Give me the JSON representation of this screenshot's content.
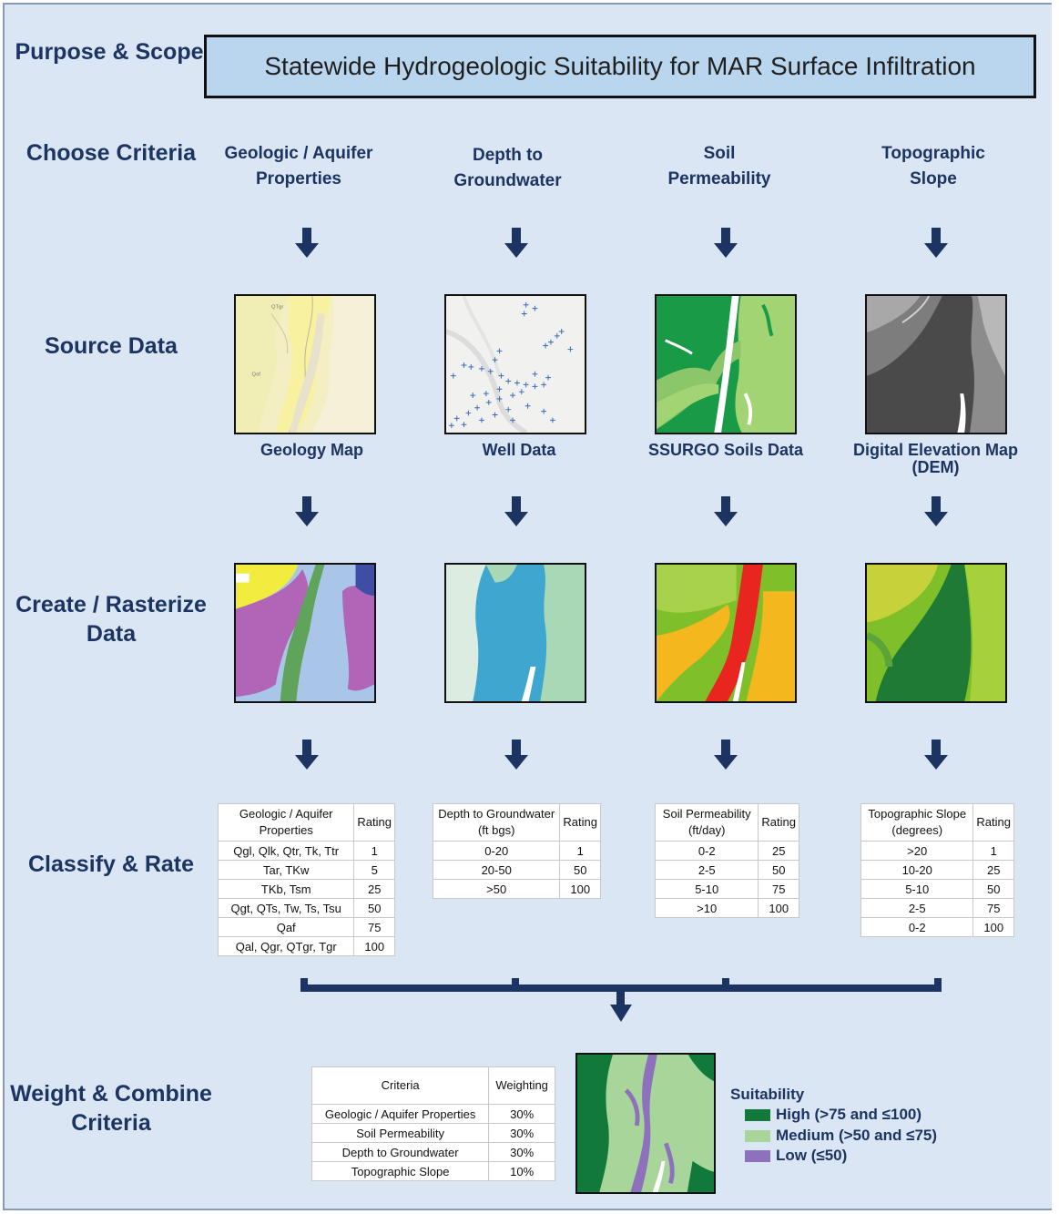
{
  "steps": {
    "purpose": "Purpose & Scope",
    "choose": "Choose Criteria",
    "source": "Source Data",
    "create": "Create / Rasterize Data",
    "classify": "Classify & Rate",
    "weight": "Weight & Combine Criteria"
  },
  "title": "Statewide Hydrogeologic Suitability for MAR Surface Infiltration",
  "criteria": [
    {
      "name": "Geologic / Aquifer Properties",
      "source": "Geology Map"
    },
    {
      "name": "Depth to Groundwater",
      "source": "Well Data"
    },
    {
      "name": "Soil Permeability",
      "source": "SSURGO Soils Data"
    },
    {
      "name": "Topographic Slope",
      "source": "Digital Elevation Map (DEM)"
    }
  ],
  "map_labels": {
    "geo_a": "QTgr",
    "geo_b": "Qaf"
  },
  "tables": {
    "geology": {
      "header": [
        "Geologic / Aquifer Properties",
        "Rating"
      ],
      "rows": [
        [
          "Qgl, Qlk, Qtr, Tk, Ttr",
          "1"
        ],
        [
          "Tar, TKw",
          "5"
        ],
        [
          "TKb, Tsm",
          "25"
        ],
        [
          "Qgt, QTs, Tw, Ts, Tsu",
          "50"
        ],
        [
          "Qaf",
          "75"
        ],
        [
          "Qal, Qgr, QTgr, Tgr",
          "100"
        ]
      ]
    },
    "depth": {
      "header": [
        "Depth to Groundwater (ft bgs)",
        "Rating"
      ],
      "rows": [
        [
          "0-20",
          "1"
        ],
        [
          "20-50",
          "50"
        ],
        [
          ">50",
          "100"
        ]
      ]
    },
    "soil": {
      "header": [
        "Soil Permeability (ft/day)",
        "Rating"
      ],
      "rows": [
        [
          "0-2",
          "25"
        ],
        [
          "2-5",
          "50"
        ],
        [
          "5-10",
          "75"
        ],
        [
          ">10",
          "100"
        ]
      ]
    },
    "slope": {
      "header": [
        "Topographic Slope (degrees)",
        "Rating"
      ],
      "rows": [
        [
          ">20",
          "1"
        ],
        [
          "10-20",
          "25"
        ],
        [
          "5-10",
          "50"
        ],
        [
          "2-5",
          "75"
        ],
        [
          "0-2",
          "100"
        ]
      ]
    },
    "weights": {
      "header": [
        "Criteria",
        "Weighting"
      ],
      "rows": [
        [
          "Geologic / Aquifer Properties",
          "30%"
        ],
        [
          "Soil Permeability",
          "30%"
        ],
        [
          "Depth to Groundwater",
          "30%"
        ],
        [
          "Topographic Slope",
          "10%"
        ]
      ]
    }
  },
  "legend": {
    "title": "Suitability",
    "items": [
      {
        "label": "High (>75 and ≤100)",
        "color": "#117a3b"
      },
      {
        "label": "Medium (>50 and ≤75)",
        "color": "#a8d59a"
      },
      {
        "label": "Low (≤50)",
        "color": "#8e71bd"
      }
    ]
  },
  "colors": {
    "arrow": "#1c3461",
    "text": "#1c3461",
    "background": "#dbe6f4",
    "title_fill": "#b9d6ee"
  }
}
